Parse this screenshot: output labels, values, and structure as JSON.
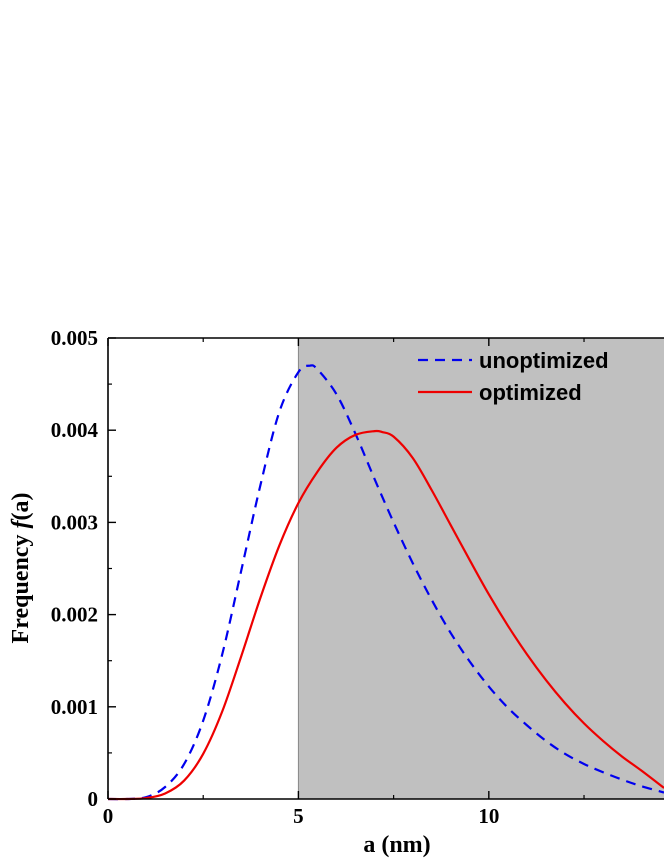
{
  "chart_data": {
    "type": "line",
    "xlabel": "a (nm)",
    "ylabel_prefix": "Frequency ",
    "ylabel_italic": "f",
    "ylabel_suffix": "(a)",
    "xlim": [
      0,
      14.6
    ],
    "ylim": [
      0,
      0.005
    ],
    "x_ticks": [
      {
        "value": 0,
        "label": "0"
      },
      {
        "value": 5,
        "label": "5"
      },
      {
        "value": 10,
        "label": "10"
      }
    ],
    "y_ticks": [
      {
        "value": 0,
        "label": "0"
      },
      {
        "value": 0.001,
        "label": "0.001"
      },
      {
        "value": 0.002,
        "label": "0.002"
      },
      {
        "value": 0.003,
        "label": "0.003"
      },
      {
        "value": 0.004,
        "label": "0.004"
      },
      {
        "value": 0.005,
        "label": "0.005"
      }
    ],
    "shaded_region": {
      "x_start": 5,
      "x_end": 14.6,
      "color": "#c0c0c0"
    },
    "legend_position": "top-right",
    "grid": false,
    "series": [
      {
        "name": "unoptimized",
        "color": "#0000ee",
        "style": "dashed",
        "x": [
          0,
          0.5,
          1.0,
          1.5,
          2.0,
          2.5,
          3.0,
          3.5,
          4.0,
          4.5,
          5.0,
          5.3,
          5.5,
          6.0,
          6.5,
          7.0,
          7.5,
          8.0,
          8.5,
          9.0,
          9.5,
          10.0,
          10.5,
          11.0,
          11.5,
          12.0,
          12.5,
          13.0,
          13.5,
          14.0,
          14.6
        ],
        "y": [
          0,
          0,
          2e-05,
          0.00013,
          0.00038,
          0.00085,
          0.00157,
          0.00248,
          0.0034,
          0.0042,
          0.00463,
          0.0047,
          0.00466,
          0.00439,
          0.00396,
          0.00347,
          0.003,
          0.00256,
          0.00216,
          0.0018,
          0.00149,
          0.00122,
          0.00099,
          0.0008,
          0.00063,
          0.00049,
          0.00038,
          0.00029,
          0.00021,
          0.00014,
          7e-05
        ]
      },
      {
        "name": "optimized",
        "color": "#ee0000",
        "style": "solid",
        "x": [
          0,
          0.5,
          1.0,
          1.5,
          2.0,
          2.5,
          3.0,
          3.5,
          4.0,
          4.5,
          5.0,
          5.5,
          6.0,
          6.5,
          7.0,
          7.2,
          7.5,
          8.0,
          8.5,
          9.0,
          9.5,
          10.0,
          10.5,
          11.0,
          11.5,
          12.0,
          12.5,
          13.0,
          13.5,
          14.0,
          14.6
        ],
        "y": [
          0,
          0,
          1e-05,
          6e-05,
          0.0002,
          0.00049,
          0.00095,
          0.00155,
          0.00218,
          0.00275,
          0.00321,
          0.00355,
          0.00381,
          0.00395,
          0.00399,
          0.00398,
          0.00393,
          0.0037,
          0.00335,
          0.00297,
          0.00259,
          0.00222,
          0.00188,
          0.00157,
          0.00129,
          0.00104,
          0.00082,
          0.00063,
          0.00046,
          0.00031,
          0.00012
        ]
      }
    ]
  }
}
